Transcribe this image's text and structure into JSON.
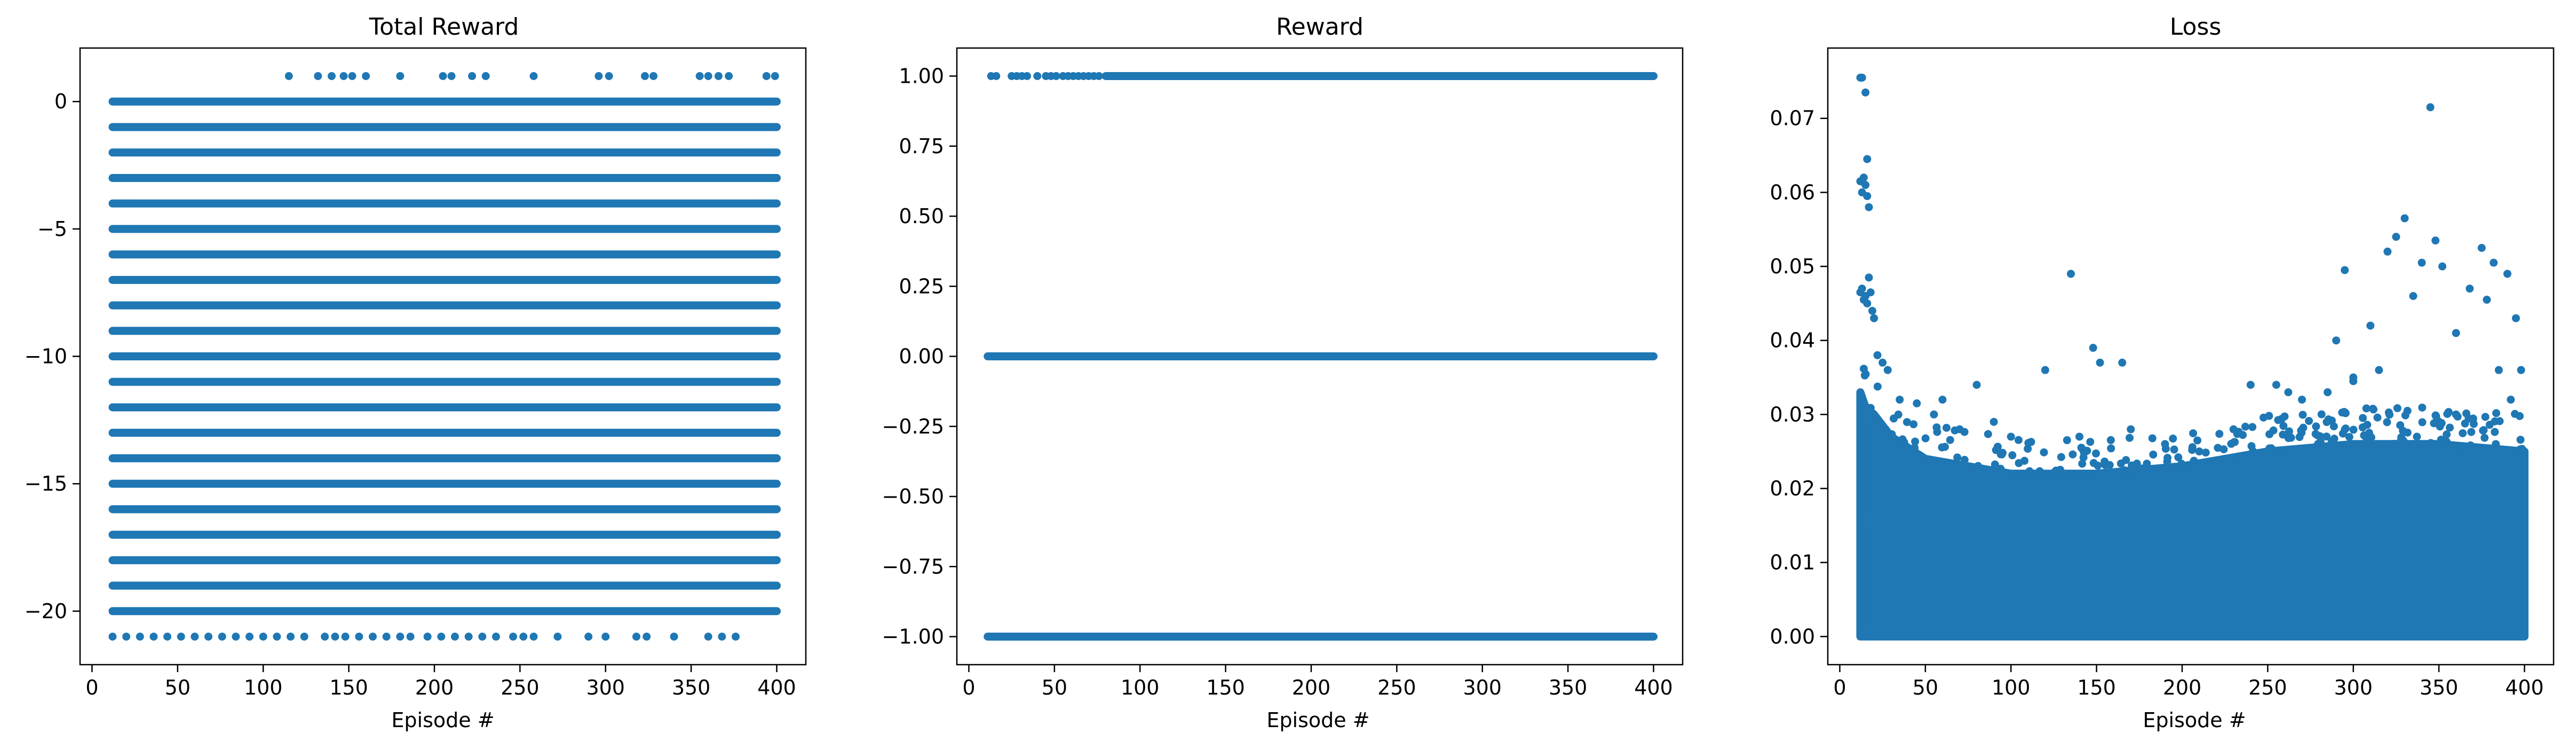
{
  "marker_color": "#1f77b4",
  "chart_data": [
    {
      "type": "scatter",
      "title": "Total Reward",
      "xlabel": "Episode #",
      "ylabel": "",
      "xlim": [
        -7,
        417
      ],
      "ylim": [
        -22.1,
        2.1
      ],
      "xticks": [
        0,
        50,
        100,
        150,
        200,
        250,
        300,
        350,
        400
      ],
      "yticks": [
        0,
        -5,
        -10,
        -15,
        -20
      ],
      "grid": false,
      "series": [
        {
          "bands": [
            {
              "y": 0,
              "x": [
                12,
                400
              ]
            },
            {
              "y": -1,
              "x": [
                12,
                400
              ]
            },
            {
              "y": -2,
              "x": [
                12,
                400
              ]
            },
            {
              "y": -3,
              "x": [
                12,
                400
              ]
            },
            {
              "y": -4,
              "x": [
                12,
                400
              ]
            },
            {
              "y": -5,
              "x": [
                12,
                400
              ]
            },
            {
              "y": -6,
              "x": [
                12,
                400
              ]
            },
            {
              "y": -7,
              "x": [
                12,
                400
              ]
            },
            {
              "y": -8,
              "x": [
                12,
                400
              ]
            },
            {
              "y": -9,
              "x": [
                12,
                400
              ]
            },
            {
              "y": -10,
              "x": [
                12,
                400
              ]
            },
            {
              "y": -11,
              "x": [
                12,
                400
              ]
            },
            {
              "y": -12,
              "x": [
                12,
                400
              ]
            },
            {
              "y": -13,
              "x": [
                12,
                400
              ]
            },
            {
              "y": -14,
              "x": [
                12,
                400
              ]
            },
            {
              "y": -15,
              "x": [
                12,
                400
              ]
            },
            {
              "y": -16,
              "x": [
                12,
                400
              ]
            },
            {
              "y": -17,
              "x": [
                12,
                400
              ]
            },
            {
              "y": -18,
              "x": [
                12,
                400
              ]
            },
            {
              "y": -19,
              "x": [
                12,
                400
              ]
            },
            {
              "y": -20,
              "x": [
                12,
                400
              ]
            }
          ],
          "points": [
            [
              115,
              1
            ],
            [
              132,
              1
            ],
            [
              140,
              1
            ],
            [
              147,
              1
            ],
            [
              152,
              1
            ],
            [
              160,
              1
            ],
            [
              180,
              1
            ],
            [
              205,
              1
            ],
            [
              210,
              1
            ],
            [
              222,
              1
            ],
            [
              230,
              1
            ],
            [
              258,
              1
            ],
            [
              296,
              1
            ],
            [
              302,
              1
            ],
            [
              323,
              1
            ],
            [
              328,
              1
            ],
            [
              355,
              1
            ],
            [
              360,
              1
            ],
            [
              366,
              1
            ],
            [
              372,
              1
            ],
            [
              394,
              1
            ],
            [
              399,
              1
            ],
            [
              12,
              -21
            ],
            [
              20,
              -21
            ],
            [
              28,
              -21
            ],
            [
              36,
              -21
            ],
            [
              44,
              -21
            ],
            [
              52,
              -21
            ],
            [
              60,
              -21
            ],
            [
              68,
              -21
            ],
            [
              76,
              -21
            ],
            [
              84,
              -21
            ],
            [
              92,
              -21
            ],
            [
              100,
              -21
            ],
            [
              108,
              -21
            ],
            [
              116,
              -21
            ],
            [
              124,
              -21
            ],
            [
              136,
              -21
            ],
            [
              142,
              -21
            ],
            [
              148,
              -21
            ],
            [
              156,
              -21
            ],
            [
              164,
              -21
            ],
            [
              172,
              -21
            ],
            [
              180,
              -21
            ],
            [
              186,
              -21
            ],
            [
              196,
              -21
            ],
            [
              204,
              -21
            ],
            [
              212,
              -21
            ],
            [
              220,
              -21
            ],
            [
              228,
              -21
            ],
            [
              236,
              -21
            ],
            [
              246,
              -21
            ],
            [
              252,
              -21
            ],
            [
              258,
              -21
            ],
            [
              272,
              -21
            ],
            [
              290,
              -21
            ],
            [
              300,
              -21
            ],
            [
              318,
              -21
            ],
            [
              324,
              -21
            ],
            [
              340,
              -21
            ],
            [
              360,
              -21
            ],
            [
              368,
              -21
            ],
            [
              376,
              -21
            ]
          ]
        }
      ]
    },
    {
      "type": "scatter",
      "title": "Reward",
      "xlabel": "Episode #",
      "ylabel": "",
      "xlim": [
        -7,
        417
      ],
      "ylim": [
        -1.1,
        1.1
      ],
      "xticks": [
        0,
        50,
        100,
        150,
        200,
        250,
        300,
        350,
        400
      ],
      "yticks": [
        1.0,
        0.75,
        0.5,
        0.25,
        0.0,
        -0.25,
        -0.5,
        -0.75,
        -1.0
      ],
      "ytick_labels": [
        "1.00",
        "0.75",
        "0.50",
        "0.25",
        "0.00",
        "−0.25",
        "−0.50",
        "−0.75",
        "−1.00"
      ],
      "grid": false,
      "series": [
        {
          "bands": [
            {
              "y": 1,
              "x": [
                80,
                400
              ]
            },
            {
              "y": 0,
              "x": [
                11,
                400
              ]
            },
            {
              "y": -1,
              "x": [
                11,
                400
              ]
            }
          ],
          "points": [
            [
              13,
              1
            ],
            [
              16,
              1
            ],
            [
              25,
              1
            ],
            [
              28,
              1
            ],
            [
              31,
              1
            ],
            [
              34,
              1
            ],
            [
              40,
              1
            ],
            [
              45,
              1
            ],
            [
              48,
              1
            ],
            [
              51,
              1
            ],
            [
              55,
              1
            ],
            [
              58,
              1
            ],
            [
              61,
              1
            ],
            [
              64,
              1
            ],
            [
              67,
              1
            ],
            [
              70,
              1
            ],
            [
              73,
              1
            ],
            [
              76,
              1
            ]
          ]
        }
      ]
    },
    {
      "type": "scatter",
      "title": "Loss",
      "xlabel": "Episode #",
      "ylabel": "",
      "xlim": [
        -7,
        417
      ],
      "ylim": [
        -0.0038,
        0.0795
      ],
      "xticks": [
        0,
        50,
        100,
        150,
        200,
        250,
        300,
        350,
        400
      ],
      "yticks": [
        0.0,
        0.01,
        0.02,
        0.03,
        0.04,
        0.05,
        0.06,
        0.07
      ],
      "ytick_labels": [
        "0.00",
        "0.01",
        "0.02",
        "0.03",
        "0.04",
        "0.05",
        "0.06",
        "0.07"
      ],
      "grid": false,
      "series": [
        {
          "envelope": [
            [
              12,
              0.0,
              0.033
            ],
            [
              15,
              0.0,
              0.031
            ],
            [
              20,
              0.0,
              0.03
            ],
            [
              30,
              0.0,
              0.027
            ],
            [
              50,
              0.0,
              0.024
            ],
            [
              100,
              0.0,
              0.022
            ],
            [
              150,
              0.0,
              0.022
            ],
            [
              200,
              0.0,
              0.023
            ],
            [
              250,
              0.0,
              0.025
            ],
            [
              300,
              0.0,
              0.026
            ],
            [
              350,
              0.0,
              0.026
            ],
            [
              400,
              0.0,
              0.025
            ]
          ],
          "points": [
            [
              12,
              0.0755
            ],
            [
              13,
              0.0755
            ],
            [
              15,
              0.0735
            ],
            [
              16,
              0.0645
            ],
            [
              12,
              0.0615
            ],
            [
              13,
              0.06
            ],
            [
              14,
              0.062
            ],
            [
              15,
              0.061
            ],
            [
              16,
              0.0595
            ],
            [
              17,
              0.058
            ],
            [
              12,
              0.0465
            ],
            [
              13,
              0.047
            ],
            [
              14,
              0.0455
            ],
            [
              15,
              0.046
            ],
            [
              16,
              0.045
            ],
            [
              17,
              0.0485
            ],
            [
              18,
              0.0465
            ],
            [
              19,
              0.044
            ],
            [
              20,
              0.043
            ],
            [
              22,
              0.038
            ],
            [
              25,
              0.037
            ],
            [
              28,
              0.036
            ],
            [
              12,
              0.017
            ],
            [
              13,
              0.016
            ],
            [
              14,
              0.015
            ],
            [
              15,
              0.0165
            ],
            [
              12,
              0.001
            ],
            [
              13,
              0.0005
            ],
            [
              35,
              0.032
            ],
            [
              45,
              0.0315
            ],
            [
              55,
              0.03
            ],
            [
              60,
              0.032
            ],
            [
              70,
              0.028
            ],
            [
              80,
              0.034
            ],
            [
              90,
              0.029
            ],
            [
              100,
              0.027
            ],
            [
              120,
              0.036
            ],
            [
              135,
              0.049
            ],
            [
              140,
              0.027
            ],
            [
              148,
              0.039
            ],
            [
              152,
              0.037
            ],
            [
              165,
              0.037
            ],
            [
              170,
              0.028
            ],
            [
              190,
              0.026
            ],
            [
              210,
              0.025
            ],
            [
              230,
              0.028
            ],
            [
              240,
              0.034
            ],
            [
              255,
              0.034
            ],
            [
              262,
              0.033
            ],
            [
              270,
              0.032
            ],
            [
              285,
              0.033
            ],
            [
              290,
              0.04
            ],
            [
              295,
              0.0495
            ],
            [
              300,
              0.0345
            ],
            [
              310,
              0.042
            ],
            [
              315,
              0.036
            ],
            [
              320,
              0.052
            ],
            [
              325,
              0.054
            ],
            [
              330,
              0.0565
            ],
            [
              335,
              0.046
            ],
            [
              340,
              0.0505
            ],
            [
              345,
              0.0715
            ],
            [
              348,
              0.0535
            ],
            [
              352,
              0.05
            ],
            [
              360,
              0.041
            ],
            [
              368,
              0.047
            ],
            [
              375,
              0.0525
            ],
            [
              378,
              0.0455
            ],
            [
              382,
              0.0505
            ],
            [
              390,
              0.049
            ],
            [
              395,
              0.043
            ],
            [
              398,
              0.036
            ],
            [
              300,
              0.035
            ],
            [
              360,
              0.03
            ],
            [
              385,
              0.036
            ],
            [
              392,
              0.032
            ]
          ]
        }
      ]
    }
  ]
}
